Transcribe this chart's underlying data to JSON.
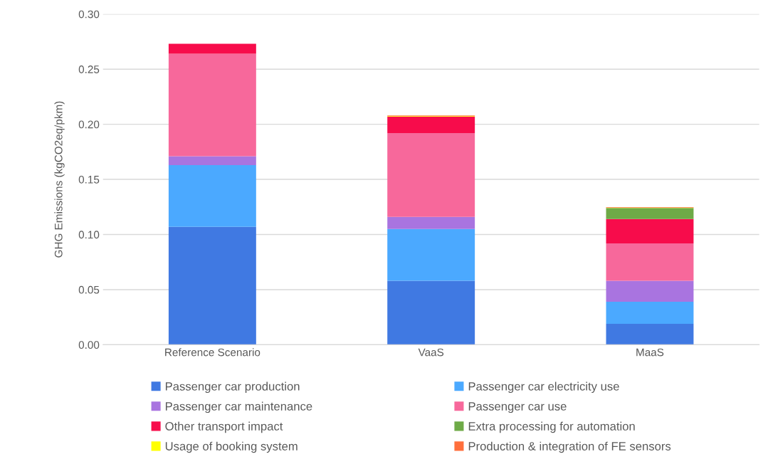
{
  "chart_data": {
    "type": "bar",
    "stacked": true,
    "ylabel": "GHG Emissions (kgCO2eq/pkm)",
    "categories": [
      "Reference Scenario",
      "VaaS",
      "MaaS"
    ],
    "series": [
      {
        "name": "Passenger car production",
        "color": "#4079e2",
        "values": [
          0.107,
          0.058,
          0.019
        ]
      },
      {
        "name": "Passenger car electricity use",
        "color": "#4ba9ff",
        "values": [
          0.056,
          0.047,
          0.02
        ]
      },
      {
        "name": "Passenger car maintenance",
        "color": "#a974e0",
        "values": [
          0.008,
          0.011,
          0.019
        ]
      },
      {
        "name": "Passenger car use",
        "color": "#f7689b",
        "values": [
          0.093,
          0.076,
          0.034
        ]
      },
      {
        "name": "Other transport impact",
        "color": "#f70c4b",
        "values": [
          0.009,
          0.015,
          0.022
        ]
      },
      {
        "name": "Extra processing for automation",
        "color": "#6eaa47",
        "values": [
          0,
          0,
          0.01
        ]
      },
      {
        "name": "Usage of booking system",
        "color": "#ffff00",
        "values": [
          0,
          0.0005,
          0.0003
        ]
      },
      {
        "name": "Production & integration of FE sensors",
        "color": "#ff6f3c",
        "values": [
          0,
          0.0005,
          0.0005
        ]
      }
    ],
    "ylim": [
      0,
      0.3
    ],
    "yticks": [
      {
        "value": 0,
        "label": "0.00"
      },
      {
        "value": 0.05,
        "label": "0.05"
      },
      {
        "value": 0.1,
        "label": "0.10"
      },
      {
        "value": 0.15,
        "label": "0.15"
      },
      {
        "value": 0.2,
        "label": "0.20"
      },
      {
        "value": 0.25,
        "label": "0.25"
      },
      {
        "value": 0.3,
        "label": "0.30"
      }
    ],
    "grid": "y",
    "legend": "bottom"
  }
}
